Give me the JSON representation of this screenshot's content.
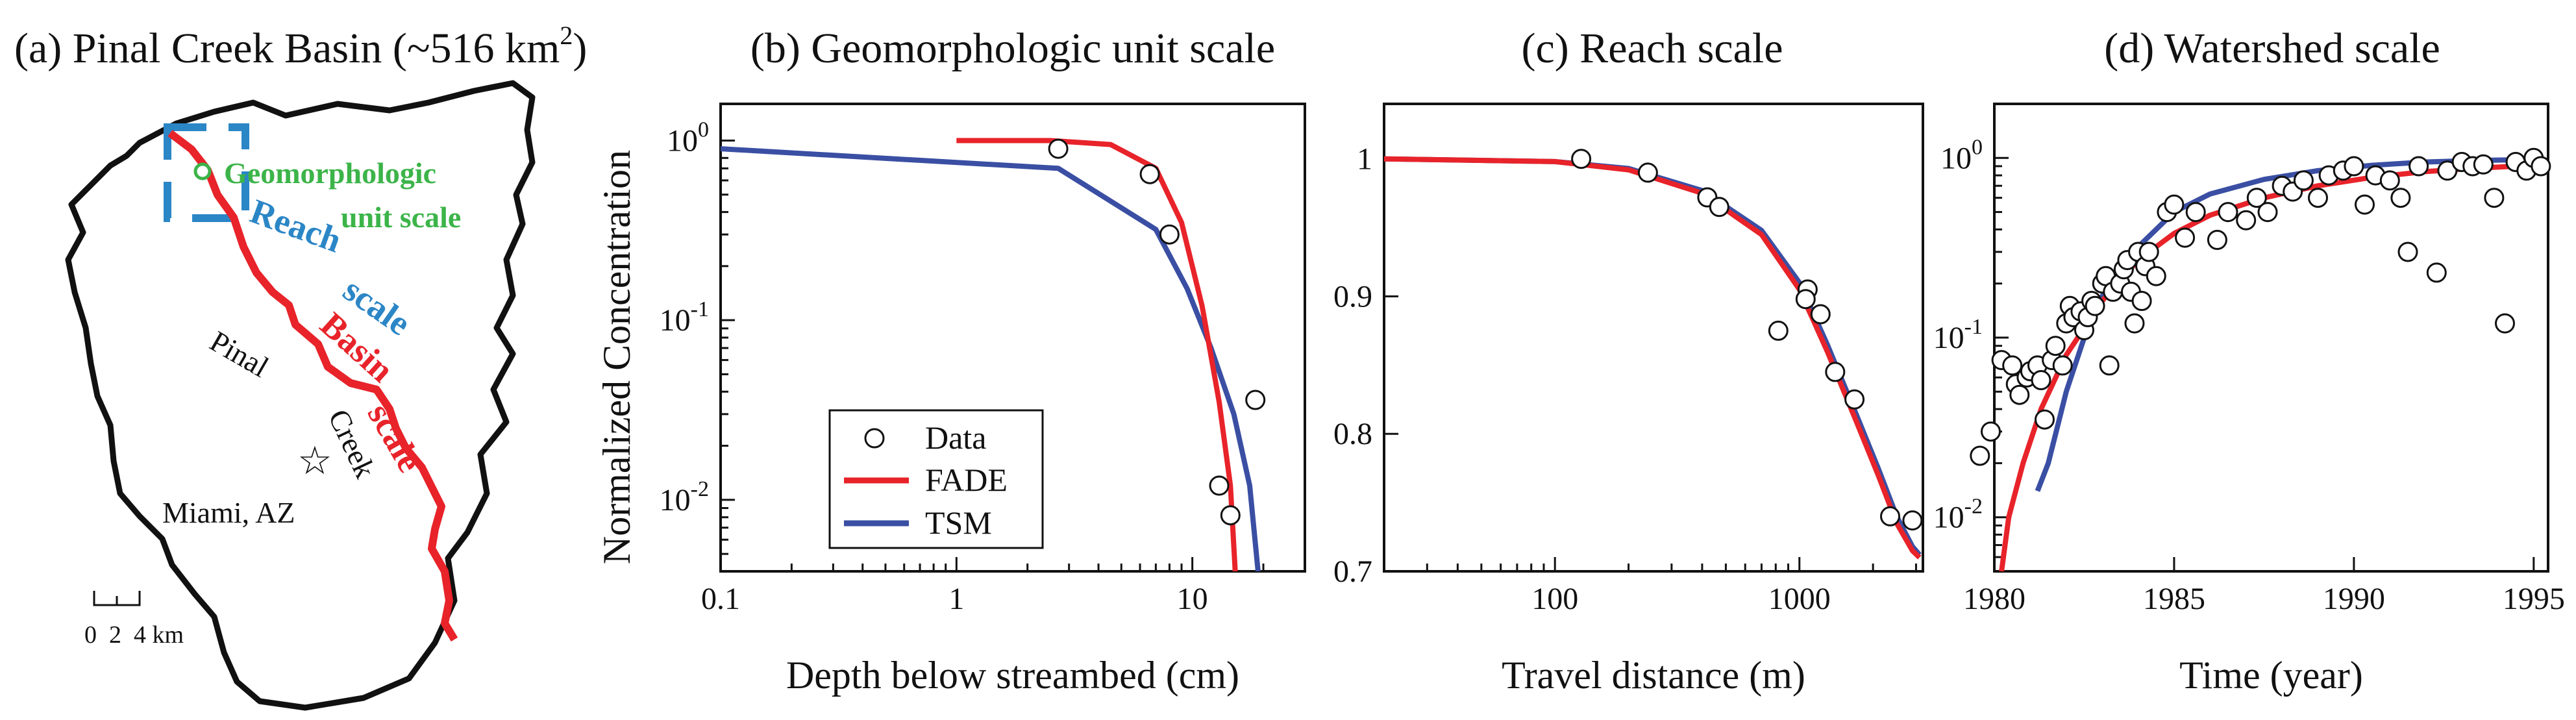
{
  "colors": {
    "red": "#e8232a",
    "blue": "#3a4fa3",
    "green": "#3cb449",
    "reach_blue": "#2b86c6",
    "black": "#111111"
  },
  "map": {
    "title": "(a) Pinal Creek Basin (~516 km",
    "title_sup": "2",
    "title_end": ")",
    "geomorph_label_1": "Geomorphologic",
    "geomorph_label_2": "unit scale",
    "reach_label_1": "Reach",
    "reach_label_2": "scale",
    "basin_label_1": "Basin",
    "basin_label_2": "scale",
    "pinal_label": "Pinal",
    "creek_label": "Creek",
    "miami_label": "Miami, AZ",
    "scale_bar_labels": "0  2  4 km"
  },
  "legend": {
    "data": "Data",
    "fade": "FADE",
    "tsm": "TSM"
  },
  "chart_data": [
    {
      "id": "b",
      "type": "scatter",
      "title": "(b) Geomorphologic unit scale",
      "xlabel": "Depth below streambed (cm)",
      "ylabel": "Normalized Concentration",
      "xscale": "log",
      "yscale": "log",
      "xlim": [
        0.1,
        30
      ],
      "ylim": [
        0.004,
        1.6
      ],
      "xticks": [
        {
          "v": 0.1,
          "label": "0.1"
        },
        {
          "v": 1,
          "label": "1"
        },
        {
          "v": 10,
          "label": "10"
        }
      ],
      "yticks": [
        {
          "v": 1,
          "base": "10",
          "exp": "0"
        },
        {
          "v": 0.1,
          "base": "10",
          "exp": "-1"
        },
        {
          "v": 0.01,
          "base": "10",
          "exp": "-2"
        }
      ],
      "data": [
        [
          2.7,
          0.9
        ],
        [
          6.6,
          0.65
        ],
        [
          8.0,
          0.3
        ],
        [
          18.5,
          0.036
        ],
        [
          13.0,
          0.012
        ],
        [
          14.5,
          0.0082
        ]
      ],
      "fade": [
        [
          1.0,
          1.0
        ],
        [
          2.5,
          1.0
        ],
        [
          4.5,
          0.95
        ],
        [
          7.0,
          0.7
        ],
        [
          9.0,
          0.35
        ],
        [
          11.0,
          0.12
        ],
        [
          13.0,
          0.035
        ],
        [
          14.5,
          0.012
        ],
        [
          15.2,
          0.004
        ]
      ],
      "tsm": [
        [
          0.1,
          0.9
        ],
        [
          2.7,
          0.7
        ],
        [
          7.0,
          0.32
        ],
        [
          9.5,
          0.15
        ],
        [
          12.0,
          0.07
        ],
        [
          15.0,
          0.03
        ],
        [
          17.5,
          0.012
        ],
        [
          19.0,
          0.004
        ]
      ]
    },
    {
      "id": "c",
      "type": "scatter",
      "title": "(c) Reach scale",
      "xlabel": "Travel distance (m)",
      "ylabel": "",
      "xscale": "log",
      "yscale": "linear",
      "xlim": [
        20,
        3200
      ],
      "ylim": [
        0.7,
        1.04
      ],
      "xticks": [
        {
          "v": 100,
          "label": "100"
        },
        {
          "v": 1000,
          "label": "1000"
        }
      ],
      "yticks": [
        {
          "v": 1,
          "label": "1"
        },
        {
          "v": 0.9,
          "label": "0.9"
        },
        {
          "v": 0.8,
          "label": "0.8"
        },
        {
          "v": 0.7,
          "label": "0.7"
        }
      ],
      "data": [
        [
          128,
          1.0
        ],
        [
          240,
          0.99
        ],
        [
          420,
          0.972
        ],
        [
          470,
          0.965
        ],
        [
          820,
          0.875
        ],
        [
          1080,
          0.905
        ],
        [
          1060,
          0.898
        ],
        [
          1220,
          0.887
        ],
        [
          1400,
          0.845
        ],
        [
          1680,
          0.825
        ],
        [
          2350,
          0.74
        ],
        [
          2900,
          0.737
        ]
      ],
      "fade": [
        [
          20,
          1.0
        ],
        [
          100,
          0.998
        ],
        [
          200,
          0.992
        ],
        [
          400,
          0.975
        ],
        [
          700,
          0.945
        ],
        [
          1000,
          0.905
        ],
        [
          1300,
          0.86
        ],
        [
          1700,
          0.81
        ],
        [
          2100,
          0.77
        ],
        [
          2500,
          0.735
        ],
        [
          2900,
          0.715
        ],
        [
          3100,
          0.71
        ]
      ],
      "tsm": [
        [
          20,
          1.0
        ],
        [
          100,
          0.998
        ],
        [
          200,
          0.993
        ],
        [
          400,
          0.977
        ],
        [
          700,
          0.948
        ],
        [
          1000,
          0.91
        ],
        [
          1300,
          0.865
        ],
        [
          1700,
          0.815
        ],
        [
          2100,
          0.775
        ],
        [
          2500,
          0.74
        ],
        [
          2900,
          0.718
        ],
        [
          3100,
          0.712
        ]
      ]
    },
    {
      "id": "d",
      "type": "scatter",
      "title": "(d) Watershed scale",
      "xlabel": "Time (year)",
      "ylabel": "",
      "xscale": "linear",
      "yscale": "log",
      "xlim": [
        1980,
        1995.4
      ],
      "ylim": [
        0.005,
        2.0
      ],
      "xticks": [
        {
          "v": 1980,
          "label": "1980"
        },
        {
          "v": 1985,
          "label": "1985"
        },
        {
          "v": 1990,
          "label": "1990"
        },
        {
          "v": 1995,
          "label": "1995"
        }
      ],
      "yticks": [
        {
          "v": 1,
          "base": "10",
          "exp": "0"
        },
        {
          "v": 0.1,
          "base": "10",
          "exp": "-1"
        },
        {
          "v": 0.01,
          "base": "10",
          "exp": "-2"
        }
      ],
      "data": [
        [
          1979.6,
          0.022
        ],
        [
          1979.9,
          0.03
        ],
        [
          1980.2,
          0.075
        ],
        [
          1980.5,
          0.07
        ],
        [
          1980.6,
          0.055
        ],
        [
          1980.7,
          0.048
        ],
        [
          1980.9,
          0.06
        ],
        [
          1981.0,
          0.065
        ],
        [
          1981.2,
          0.07
        ],
        [
          1981.3,
          0.058
        ],
        [
          1981.4,
          0.035
        ],
        [
          1981.6,
          0.075
        ],
        [
          1981.7,
          0.09
        ],
        [
          1981.9,
          0.07
        ],
        [
          1982.0,
          0.12
        ],
        [
          1982.1,
          0.15
        ],
        [
          1982.2,
          0.13
        ],
        [
          1982.4,
          0.14
        ],
        [
          1982.5,
          0.11
        ],
        [
          1982.6,
          0.13
        ],
        [
          1982.7,
          0.16
        ],
        [
          1982.8,
          0.15
        ],
        [
          1983.0,
          0.2
        ],
        [
          1983.1,
          0.22
        ],
        [
          1983.2,
          0.07
        ],
        [
          1983.3,
          0.18
        ],
        [
          1983.5,
          0.2
        ],
        [
          1983.6,
          0.24
        ],
        [
          1983.7,
          0.27
        ],
        [
          1983.8,
          0.18
        ],
        [
          1983.9,
          0.12
        ],
        [
          1984.0,
          0.3
        ],
        [
          1984.1,
          0.16
        ],
        [
          1984.2,
          0.25
        ],
        [
          1984.3,
          0.3
        ],
        [
          1984.5,
          0.22
        ],
        [
          1984.8,
          0.5
        ],
        [
          1985.0,
          0.55
        ],
        [
          1985.3,
          0.36
        ],
        [
          1985.6,
          0.5
        ],
        [
          1986.2,
          0.35
        ],
        [
          1986.5,
          0.5
        ],
        [
          1987.0,
          0.45
        ],
        [
          1987.3,
          0.6
        ],
        [
          1987.6,
          0.5
        ],
        [
          1988.0,
          0.7
        ],
        [
          1988.3,
          0.65
        ],
        [
          1988.6,
          0.75
        ],
        [
          1989.0,
          0.6
        ],
        [
          1989.3,
          0.8
        ],
        [
          1989.7,
          0.85
        ],
        [
          1990.0,
          0.9
        ],
        [
          1990.3,
          0.55
        ],
        [
          1990.6,
          0.8
        ],
        [
          1991.0,
          0.75
        ],
        [
          1991.3,
          0.6
        ],
        [
          1991.5,
          0.3
        ],
        [
          1991.8,
          0.9
        ],
        [
          1992.3,
          0.23
        ],
        [
          1992.6,
          0.85
        ],
        [
          1993.0,
          0.95
        ],
        [
          1993.3,
          0.9
        ],
        [
          1993.6,
          0.92
        ],
        [
          1993.9,
          0.6
        ],
        [
          1994.2,
          0.12
        ],
        [
          1994.5,
          0.95
        ],
        [
          1994.8,
          0.85
        ],
        [
          1995.0,
          1.0
        ],
        [
          1995.2,
          0.9
        ]
      ],
      "fade": [
        [
          1980.2,
          0.005
        ],
        [
          1980.4,
          0.01
        ],
        [
          1980.8,
          0.02
        ],
        [
          1981.3,
          0.04
        ],
        [
          1982.0,
          0.08
        ],
        [
          1983.0,
          0.16
        ],
        [
          1984.0,
          0.27
        ],
        [
          1985.0,
          0.38
        ],
        [
          1986.0,
          0.48
        ],
        [
          1987.5,
          0.6
        ],
        [
          1989.0,
          0.7
        ],
        [
          1990.5,
          0.78
        ],
        [
          1992.0,
          0.84
        ],
        [
          1993.5,
          0.88
        ],
        [
          1995.0,
          0.91
        ]
      ],
      "tsm": [
        [
          1981.2,
          0.014
        ],
        [
          1981.5,
          0.02
        ],
        [
          1982.0,
          0.05
        ],
        [
          1982.5,
          0.1
        ],
        [
          1983.0,
          0.17
        ],
        [
          1984.0,
          0.32
        ],
        [
          1985.0,
          0.5
        ],
        [
          1986.0,
          0.63
        ],
        [
          1987.5,
          0.76
        ],
        [
          1989.0,
          0.85
        ],
        [
          1990.5,
          0.91
        ],
        [
          1992.0,
          0.95
        ],
        [
          1993.5,
          0.97
        ],
        [
          1995.0,
          0.98
        ]
      ]
    }
  ]
}
